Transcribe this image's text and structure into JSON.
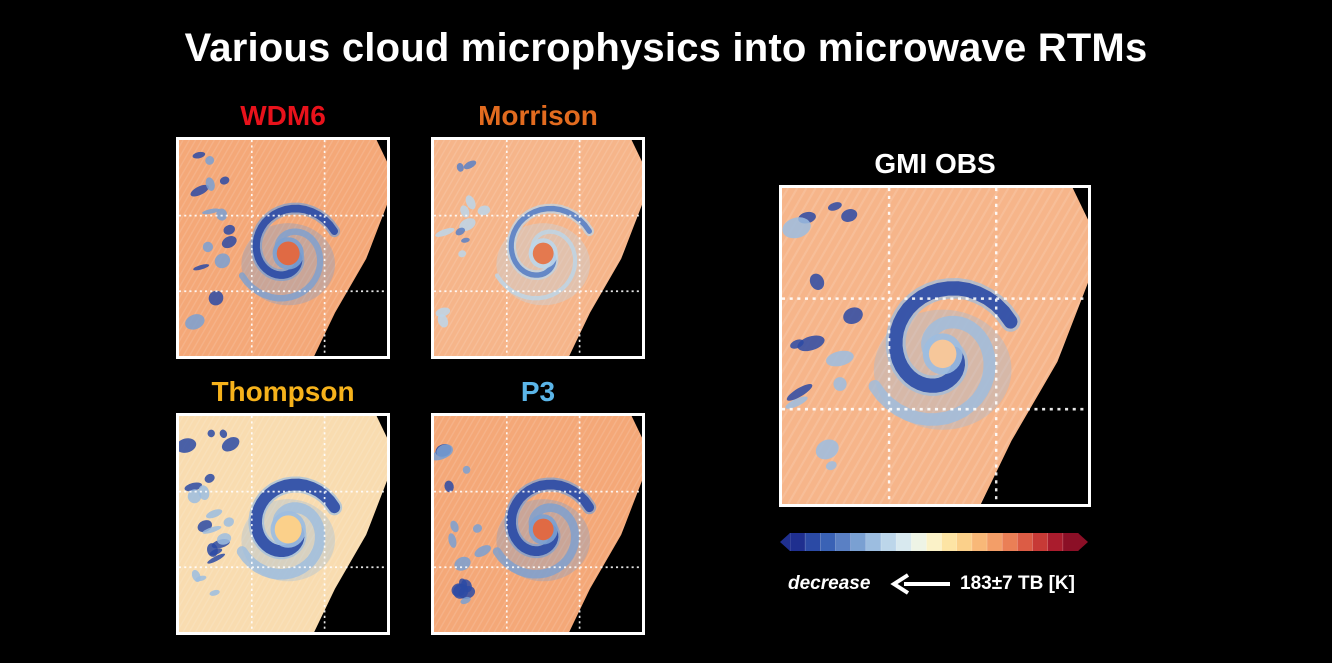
{
  "title": "Various cloud microphysics into microwave RTMs",
  "panels": {
    "wdm6": {
      "label": "WDM6",
      "color": "#e8121b"
    },
    "morrison": {
      "label": "Morrison",
      "color": "#e26b1f"
    },
    "thompson": {
      "label": "Thompson",
      "color": "#f6b21b"
    },
    "p3": {
      "label": "P3",
      "color": "#5bb5e8"
    },
    "gmi": {
      "label": "GMI OBS",
      "color": "#ffffff"
    }
  },
  "colorbar": {
    "colors": [
      "#1f2f8f",
      "#2b4aa5",
      "#3a62b5",
      "#5a80c4",
      "#7aa0d2",
      "#9cbde0",
      "#bcd6ea",
      "#d8e9ef",
      "#eef4e6",
      "#fbf2c8",
      "#fde4a4",
      "#fbd08a",
      "#f8b878",
      "#f39e68",
      "#ea7f56",
      "#dc5c45",
      "#c73a36",
      "#aa1c2d",
      "#8b0f26"
    ]
  },
  "legend": {
    "decrease_label": "decrease",
    "units_label": "183±7 TB [K]"
  }
}
